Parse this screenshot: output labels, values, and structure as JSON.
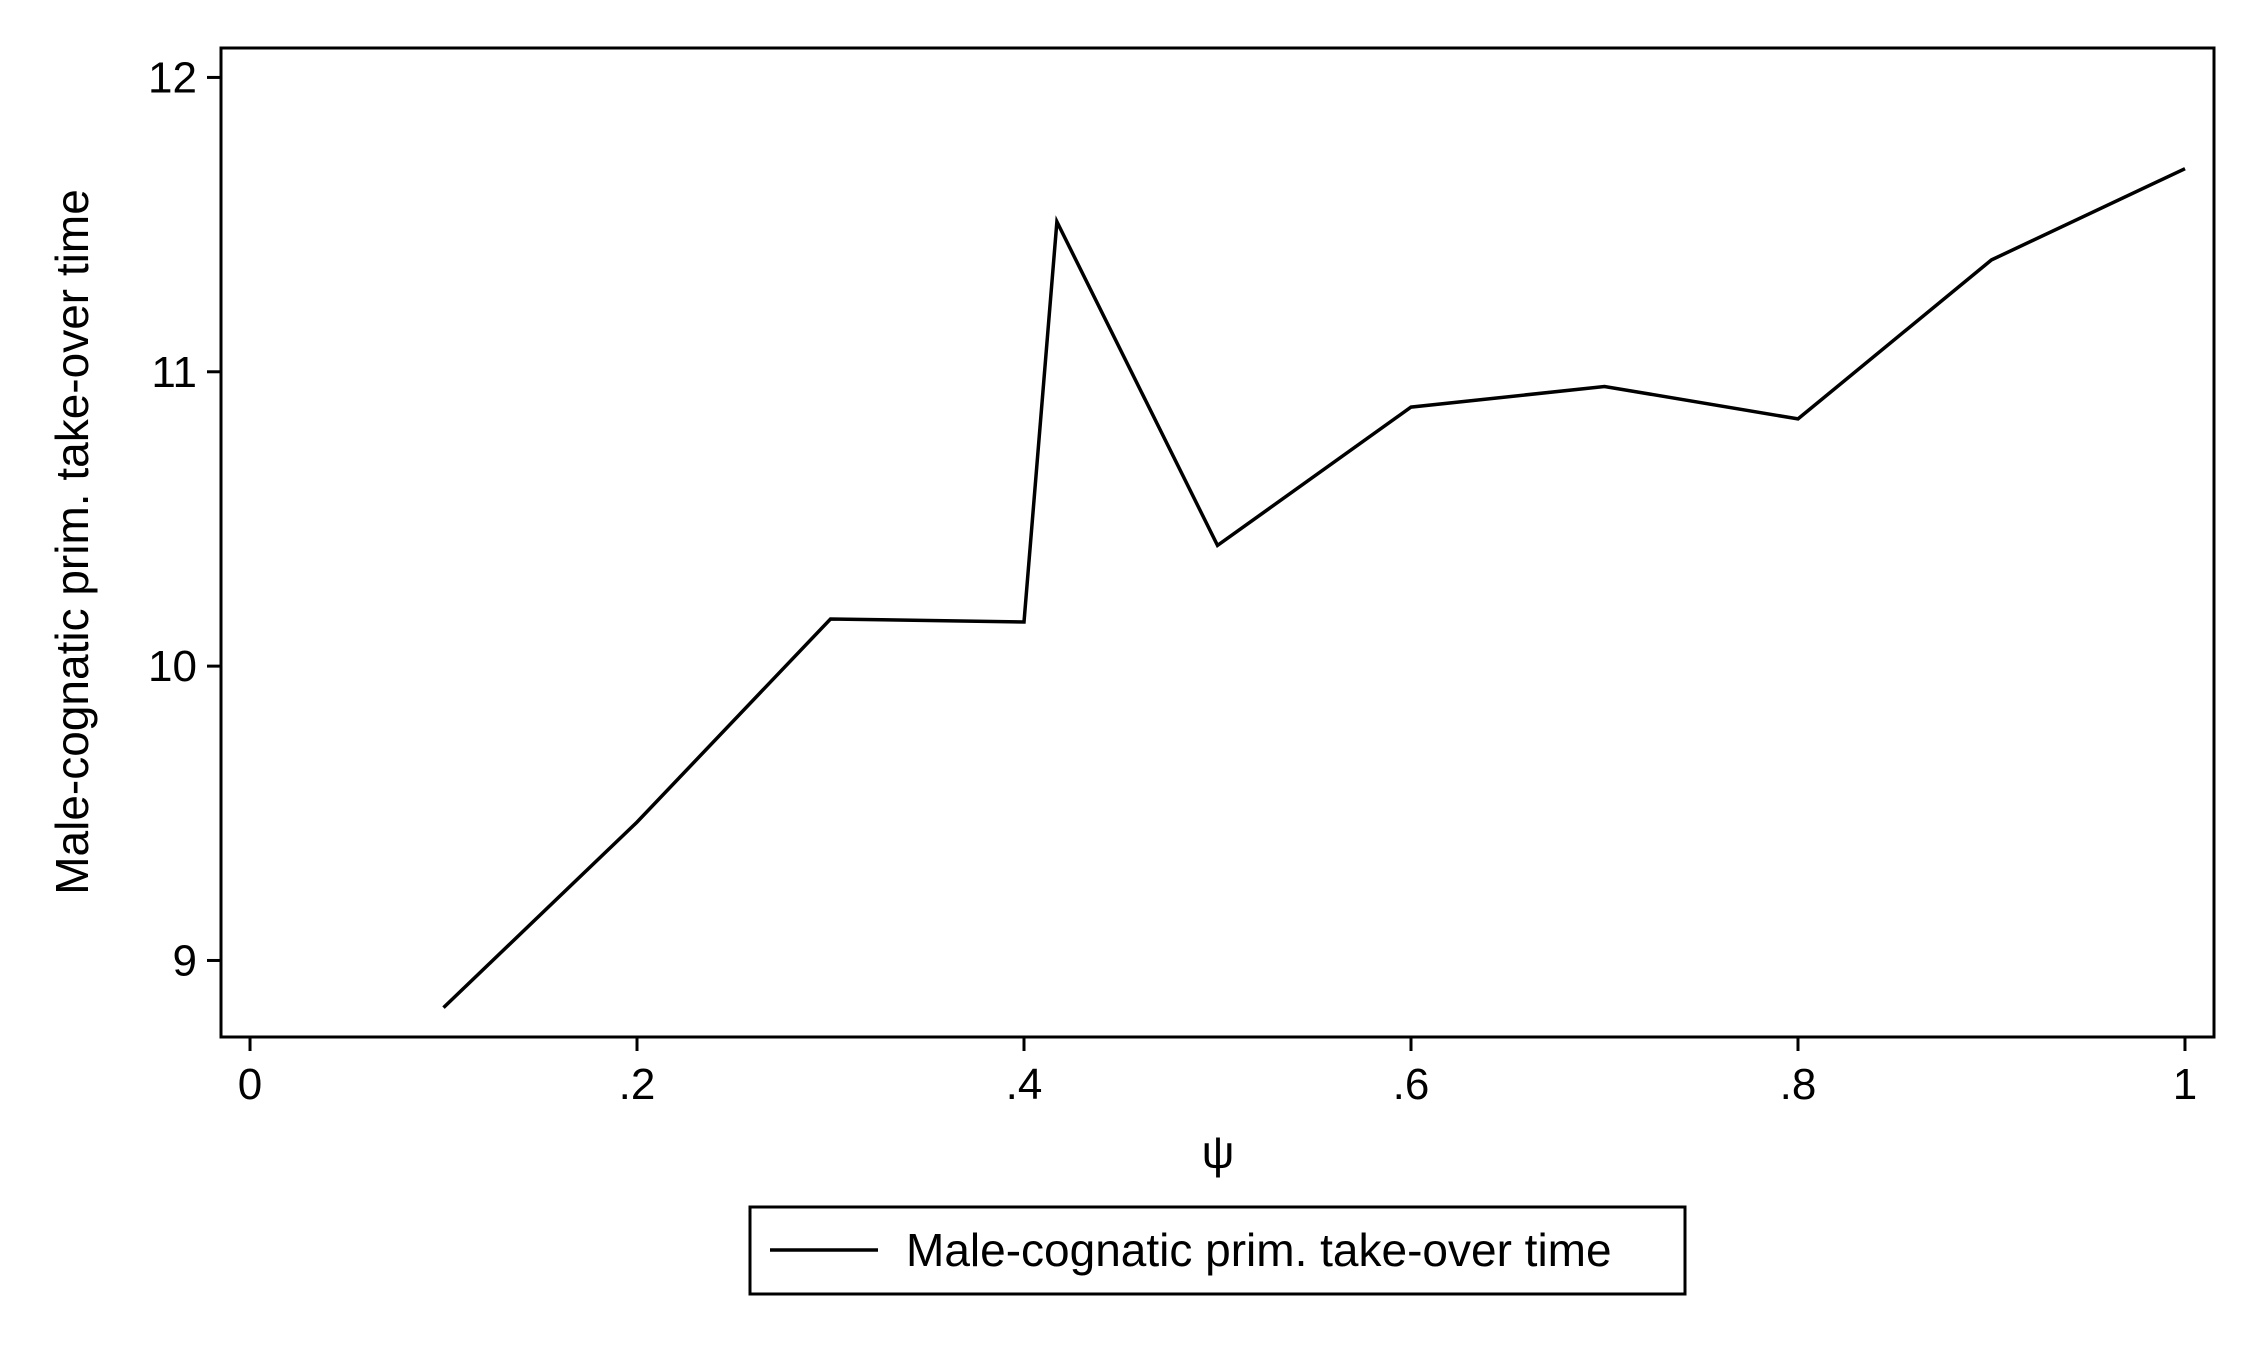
{
  "chart_data": {
    "type": "line",
    "title": "",
    "xlabel": "ψ",
    "ylabel": "Male-cognatic prim. take-over time",
    "xlim": [
      -0.015,
      1.015
    ],
    "ylim": [
      8.74,
      12.1
    ],
    "x_ticks": [
      0,
      0.2,
      0.4,
      0.6,
      0.8,
      1
    ],
    "x_tick_labels": [
      "0",
      ".2",
      ".4",
      ".6",
      ".8",
      "1"
    ],
    "y_ticks": [
      9,
      10,
      11,
      12
    ],
    "y_tick_labels": [
      "9",
      "10",
      "11",
      "12"
    ],
    "grid": false,
    "legend_position": "bottom-center",
    "line_color": "#000000",
    "series": [
      {
        "name": "Male-cognatic prim. take-over time",
        "x": [
          0.1,
          0.2,
          0.3,
          0.4,
          0.417,
          0.5,
          0.6,
          0.7,
          0.8,
          0.9,
          1.0
        ],
        "y": [
          8.84,
          9.47,
          10.16,
          10.15,
          11.51,
          10.41,
          10.88,
          10.95,
          10.84,
          11.38,
          11.69
        ]
      }
    ]
  }
}
